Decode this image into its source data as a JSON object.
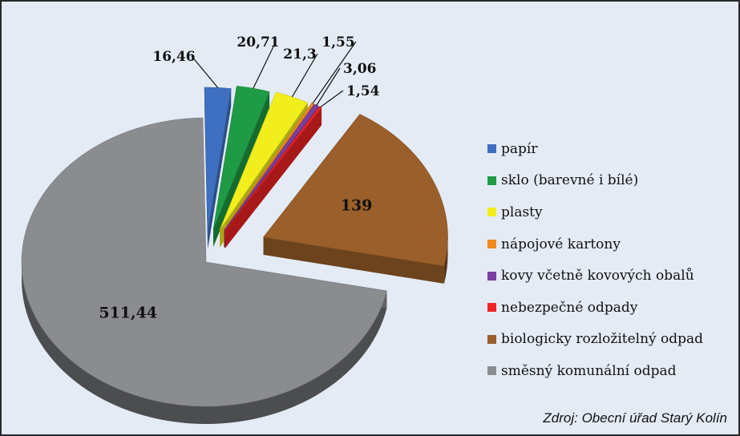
{
  "chart_data": {
    "type": "pie",
    "title": "",
    "categories": [
      "papír",
      "sklo (barevné i bílé)",
      "plasty",
      "nápojové kartony",
      "kovy včetně kovových obalů",
      "nebezpečné odpady",
      "biologicky rozložitelný odpad",
      "směsný komunální odpad"
    ],
    "values": [
      16.46,
      20.71,
      21.3,
      1.55,
      3.06,
      1.54,
      139,
      511.44
    ],
    "data_labels": [
      "16,46",
      "20,71",
      "21,3",
      "1,55",
      "3,06",
      "1,54",
      "139",
      "511,44"
    ],
    "colors": [
      "#3f6fc0",
      "#1f9a45",
      "#f2ee1d",
      "#f08a1e",
      "#7a3fa0",
      "#ee2424",
      "#9a5f2a",
      "#8a8c90"
    ],
    "legend_position": "right",
    "exploded": true,
    "three_d": true
  },
  "source_note": "Zdroj: Obecní úřad Starý Kolín"
}
